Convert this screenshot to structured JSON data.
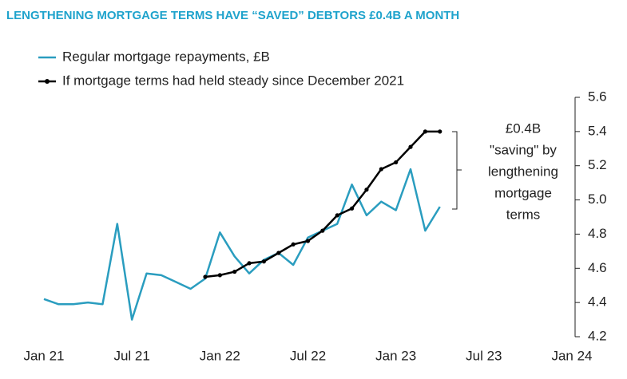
{
  "chart_data": {
    "type": "line",
    "title": "LENGTHENING MORTGAGE TERMS HAVE “SAVED” DEBTORS £0.4B A MONTH",
    "categories": [
      "Jan 21",
      null,
      null,
      null,
      null,
      null,
      "Jul 21",
      null,
      null,
      null,
      null,
      null,
      "Jan 22",
      null,
      null,
      null,
      null,
      null,
      "Jul 22",
      null,
      null,
      null,
      null,
      null,
      "Jan 23",
      null,
      null,
      null,
      null,
      null,
      "Jul 23",
      null,
      null,
      null,
      null,
      null,
      "Jan 24"
    ],
    "series": [
      {
        "name": "Regular mortgage repayments, £B",
        "color": "#2a9dbf",
        "markers": false,
        "values": [
          4.42,
          4.39,
          4.39,
          4.4,
          4.39,
          4.86,
          4.3,
          4.57,
          4.56,
          4.52,
          4.48,
          4.54,
          4.81,
          4.67,
          4.57,
          4.65,
          4.69,
          4.62,
          4.78,
          4.82,
          4.86,
          5.09,
          4.91,
          4.99,
          4.94,
          5.18,
          4.82,
          4.96,
          null,
          null,
          null,
          null,
          null,
          null,
          null,
          null,
          null
        ]
      },
      {
        "name": "If mortgage terms had held steady since December 2021",
        "color": "#000000",
        "markers": true,
        "values": [
          null,
          null,
          null,
          null,
          null,
          null,
          null,
          null,
          null,
          null,
          null,
          4.55,
          4.56,
          4.58,
          4.63,
          4.64,
          4.69,
          4.74,
          4.76,
          4.82,
          4.91,
          4.95,
          5.06,
          5.18,
          5.22,
          5.31,
          5.4,
          5.4,
          null,
          null,
          null,
          null,
          null,
          null,
          null,
          null,
          null
        ]
      }
    ],
    "annotation": [
      "£0.4B",
      "\"saving\" by",
      "lengthening",
      "mortgage",
      "terms"
    ],
    "ylim": [
      4.2,
      5.6
    ],
    "yticks": [
      4.2,
      4.4,
      4.6,
      4.8,
      {
        "value": 5,
        "label": "5.0"
      },
      5.2,
      5.4,
      5.6
    ],
    "y_axis_side": "right"
  }
}
